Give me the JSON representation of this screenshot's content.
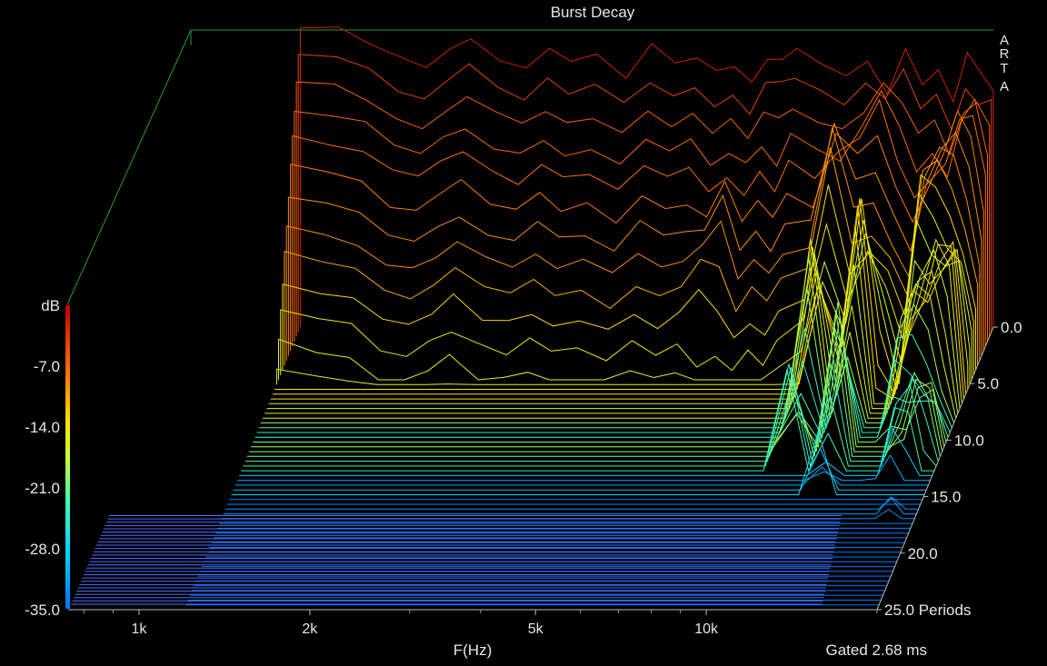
{
  "chart_data": {
    "type": "waterfall",
    "title": "Burst Decay",
    "watermark": [
      "A",
      "R",
      "T",
      "A"
    ],
    "xlabel": "F(Hz)",
    "x_scale": "log",
    "x_ticks": [
      {
        "value": 1000,
        "label": "1k"
      },
      {
        "value": 2000,
        "label": "2k"
      },
      {
        "value": 5000,
        "label": "5k"
      },
      {
        "value": 10000,
        "label": "10k"
      }
    ],
    "xlim": [
      750,
      20000
    ],
    "dB_label": "dB",
    "dB_ticks": [
      {
        "value": 0,
        "label": ""
      },
      {
        "value": -7,
        "label": "-7.0"
      },
      {
        "value": -14,
        "label": "-14.0"
      },
      {
        "value": -21,
        "label": "-21.0"
      },
      {
        "value": -28,
        "label": "-28.0"
      },
      {
        "value": -35,
        "label": "-35.0"
      }
    ],
    "dB_range": [
      -35,
      0
    ],
    "depth_ticks": [
      {
        "value": 0,
        "label": "0.0"
      },
      {
        "value": 5,
        "label": "5.0"
      },
      {
        "value": 10,
        "label": "10.0"
      },
      {
        "value": 15,
        "label": "15.0"
      },
      {
        "value": 20,
        "label": "20.0"
      },
      {
        "value": 25,
        "label": "25.0 Periods"
      }
    ],
    "depth_range": [
      0,
      25
    ],
    "footer": "Gated 2.68 ms",
    "freqs": [
      1200,
      1400,
      1600,
      1800,
      2000,
      2200,
      2400,
      2700,
      3000,
      3300,
      3600,
      4000,
      4500,
      5000,
      5500,
      6000,
      6500,
      7000,
      7500,
      8000,
      8500,
      9000,
      10000,
      11000,
      12000,
      13000,
      14000,
      15000,
      16000,
      17000,
      18000,
      19000,
      20000
    ],
    "base_depth_0": [
      0,
      -1,
      -2,
      -4,
      -5,
      -3,
      -2,
      -4,
      -5,
      -3,
      -5,
      -4,
      -6,
      -3,
      -5,
      -4,
      -6,
      -5,
      -7,
      -4,
      -6,
      -3,
      -5,
      -6,
      -4,
      -8,
      -3,
      -7,
      -5,
      -9,
      -4,
      -6,
      -8
    ],
    "notch_freqs": [
      1800,
      2200,
      2700,
      3300,
      4000,
      5000,
      6500,
      8000,
      11000,
      13000,
      15000
    ],
    "resonances": [
      {
        "freq": 6800,
        "depth_extent": 4
      },
      {
        "freq": 8500,
        "depth_extent": 3
      },
      {
        "freq": 11000,
        "depth_extent": 13
      },
      {
        "freq": 13000,
        "depth_extent": 15
      },
      {
        "freq": 16500,
        "depth_extent": 24
      },
      {
        "freq": 18500,
        "depth_extent": 25
      }
    ],
    "grid": false,
    "colorbar": "jet"
  }
}
